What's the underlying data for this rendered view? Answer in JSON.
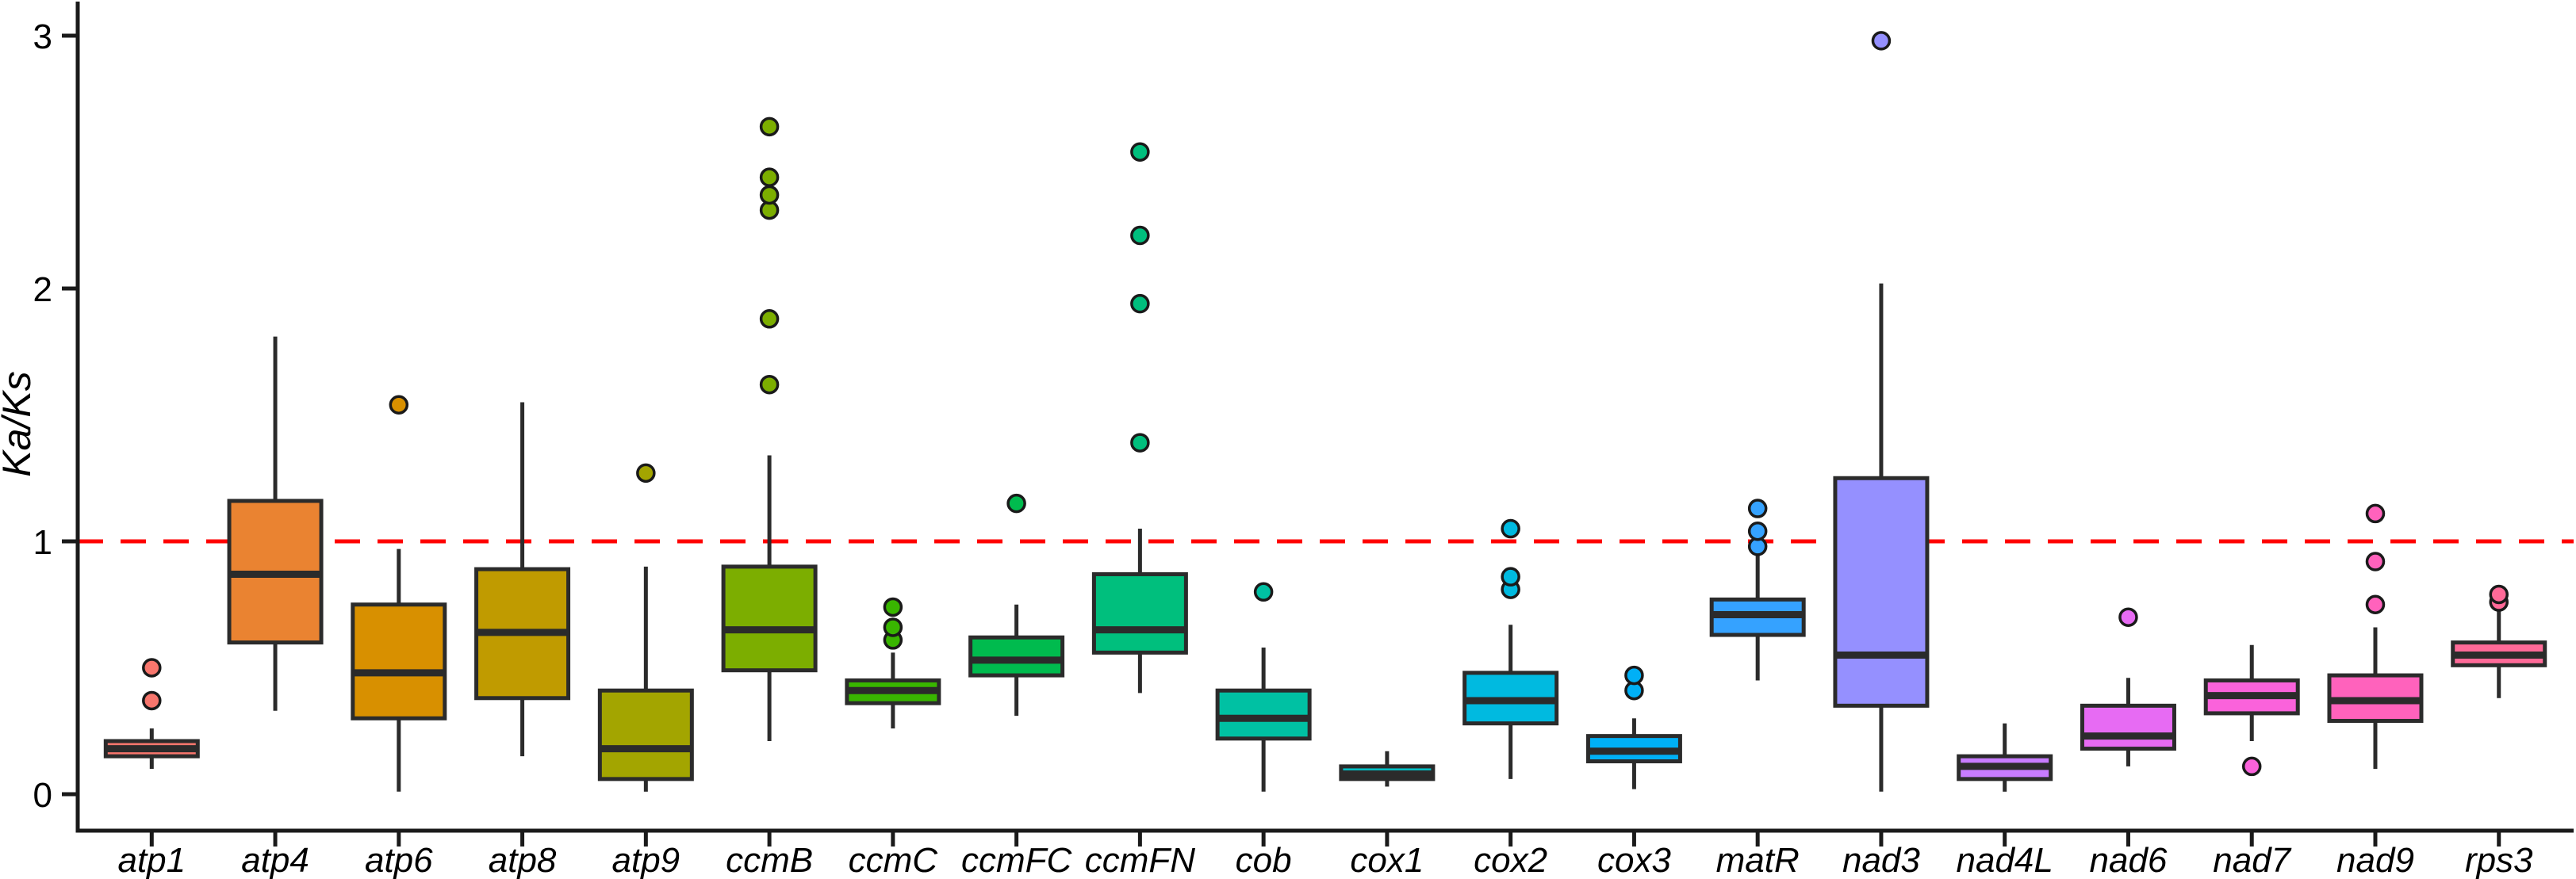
{
  "figure": {
    "background": "#FFFFFF",
    "axis_color": "#1A1A1A",
    "box_border_color": "#2B2B2B",
    "median_color": "#2B2B2B"
  },
  "chart_data": {
    "type": "boxplot",
    "title": "",
    "xlabel": "",
    "ylabel": "Ka/Ks",
    "ylim": [
      0,
      3.05
    ],
    "yticks": [
      0,
      1,
      2,
      3
    ],
    "grid": false,
    "legend": "none",
    "reference_line": {
      "y": 1,
      "color": "#FF0000",
      "style": "dashed",
      "label": ""
    },
    "categories": [
      "atp1",
      "atp4",
      "atp6",
      "atp8",
      "atp9",
      "ccmB",
      "ccmC",
      "ccmFC",
      "ccmFN",
      "cob",
      "cox1",
      "cox2",
      "cox3",
      "matR",
      "nad3",
      "nad4L",
      "nad6",
      "nad7",
      "nad9",
      "rps3"
    ],
    "series": [
      {
        "name": "atp1",
        "color": "#F8766D",
        "whisker_low": 0.1,
        "q1": 0.15,
        "median": 0.18,
        "q3": 0.21,
        "whisker_high": 0.26,
        "outliers": [
          0.37,
          0.5
        ]
      },
      {
        "name": "atp4",
        "color": "#EA8331",
        "whisker_low": 0.33,
        "q1": 0.6,
        "median": 0.87,
        "q3": 1.16,
        "whisker_high": 1.81,
        "outliers": []
      },
      {
        "name": "atp6",
        "color": "#D89000",
        "whisker_low": 0.01,
        "q1": 0.3,
        "median": 0.48,
        "q3": 0.75,
        "whisker_high": 0.97,
        "outliers": [
          1.54
        ]
      },
      {
        "name": "atp8",
        "color": "#C09B00",
        "whisker_low": 0.15,
        "q1": 0.38,
        "median": 0.64,
        "q3": 0.89,
        "whisker_high": 1.55,
        "outliers": []
      },
      {
        "name": "atp9",
        "color": "#A3A500",
        "whisker_low": 0.01,
        "q1": 0.06,
        "median": 0.18,
        "q3": 0.41,
        "whisker_high": 0.9,
        "outliers": [
          1.27
        ]
      },
      {
        "name": "ccmB",
        "color": "#7CAE00",
        "whisker_low": 0.21,
        "q1": 0.49,
        "median": 0.65,
        "q3": 0.9,
        "whisker_high": 1.34,
        "outliers": [
          1.62,
          1.88,
          2.31,
          2.37,
          2.44,
          2.64
        ]
      },
      {
        "name": "ccmC",
        "color": "#39B600",
        "whisker_low": 0.26,
        "q1": 0.36,
        "median": 0.41,
        "q3": 0.45,
        "whisker_high": 0.56,
        "outliers": [
          0.61,
          0.66,
          0.74
        ]
      },
      {
        "name": "ccmFC",
        "color": "#00BB4E",
        "whisker_low": 0.31,
        "q1": 0.47,
        "median": 0.53,
        "q3": 0.62,
        "whisker_high": 0.75,
        "outliers": [
          1.15
        ]
      },
      {
        "name": "ccmFN",
        "color": "#00BF7D",
        "whisker_low": 0.4,
        "q1": 0.56,
        "median": 0.65,
        "q3": 0.87,
        "whisker_high": 1.05,
        "outliers": [
          1.39,
          1.94,
          2.21,
          2.54
        ]
      },
      {
        "name": "cob",
        "color": "#00C1A3",
        "whisker_low": 0.01,
        "q1": 0.22,
        "median": 0.3,
        "q3": 0.41,
        "whisker_high": 0.58,
        "outliers": [
          0.8
        ]
      },
      {
        "name": "cox1",
        "color": "#00BFC4",
        "whisker_low": 0.03,
        "q1": 0.06,
        "median": 0.08,
        "q3": 0.11,
        "whisker_high": 0.17,
        "outliers": []
      },
      {
        "name": "cox2",
        "color": "#00BAE0",
        "whisker_low": 0.06,
        "q1": 0.28,
        "median": 0.37,
        "q3": 0.48,
        "whisker_high": 0.67,
        "outliers": [
          0.81,
          0.86,
          1.05
        ]
      },
      {
        "name": "cox3",
        "color": "#00B0F6",
        "whisker_low": 0.02,
        "q1": 0.13,
        "median": 0.17,
        "q3": 0.23,
        "whisker_high": 0.3,
        "outliers": [
          0.41,
          0.47
        ]
      },
      {
        "name": "matR",
        "color": "#35A2FF",
        "whisker_low": 0.45,
        "q1": 0.63,
        "median": 0.71,
        "q3": 0.77,
        "whisker_high": 0.96,
        "outliers": [
          0.98,
          1.04,
          1.13
        ]
      },
      {
        "name": "nad3",
        "color": "#9590FF",
        "whisker_low": 0.01,
        "q1": 0.35,
        "median": 0.55,
        "q3": 1.25,
        "whisker_high": 2.02,
        "outliers": [
          2.98
        ]
      },
      {
        "name": "nad4L",
        "color": "#C77CFF",
        "whisker_low": 0.01,
        "q1": 0.06,
        "median": 0.11,
        "q3": 0.15,
        "whisker_high": 0.28,
        "outliers": []
      },
      {
        "name": "nad6",
        "color": "#E76BF3",
        "whisker_low": 0.11,
        "q1": 0.18,
        "median": 0.23,
        "q3": 0.35,
        "whisker_high": 0.46,
        "outliers": [
          0.7
        ]
      },
      {
        "name": "nad7",
        "color": "#FA62DB",
        "whisker_low": 0.21,
        "q1": 0.32,
        "median": 0.39,
        "q3": 0.45,
        "whisker_high": 0.59,
        "outliers": [
          0.11
        ]
      },
      {
        "name": "nad9",
        "color": "#FF62BC",
        "whisker_low": 0.1,
        "q1": 0.29,
        "median": 0.37,
        "q3": 0.47,
        "whisker_high": 0.66,
        "outliers": [
          0.75,
          0.92,
          1.11
        ]
      },
      {
        "name": "rps3",
        "color": "#FF6A98",
        "whisker_low": 0.38,
        "q1": 0.51,
        "median": 0.55,
        "q3": 0.6,
        "whisker_high": 0.73,
        "outliers": [
          0.76,
          0.79
        ]
      }
    ]
  }
}
